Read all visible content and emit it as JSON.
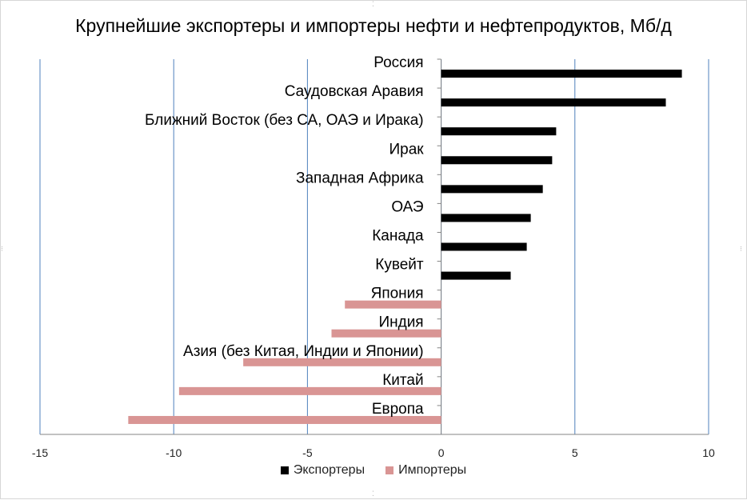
{
  "chart_data": {
    "type": "bar",
    "orientation": "horizontal",
    "title": "Крупнейшие экспортеры и импортеры нефти и нефтепродуктов, Мб/д",
    "xlim": [
      -15,
      10
    ],
    "xticks": [
      -15,
      -10,
      -5,
      0,
      5,
      10
    ],
    "grid": "vertical major",
    "legend_position": "bottom",
    "categories": [
      "Россия",
      "Саудовская Аравия",
      "Ближний Восток (без СА, ОАЭ и Ирака)",
      "Ирак",
      "Западная Африка",
      "ОАЭ",
      "Канада",
      "Кувейт",
      "Япония",
      "Индия",
      "Азия (без Китая, Индии и Японии)",
      "Китай",
      "Европа"
    ],
    "series": [
      {
        "name": "Экспортеры",
        "color": "#000000",
        "values": [
          9.0,
          8.4,
          4.3,
          4.15,
          3.8,
          3.35,
          3.2,
          2.6,
          null,
          null,
          null,
          null,
          null
        ]
      },
      {
        "name": "Импортеры",
        "color": "#d99594",
        "values": [
          null,
          null,
          null,
          null,
          null,
          null,
          null,
          null,
          -3.6,
          -4.1,
          -7.4,
          -9.8,
          -11.7
        ]
      }
    ]
  }
}
